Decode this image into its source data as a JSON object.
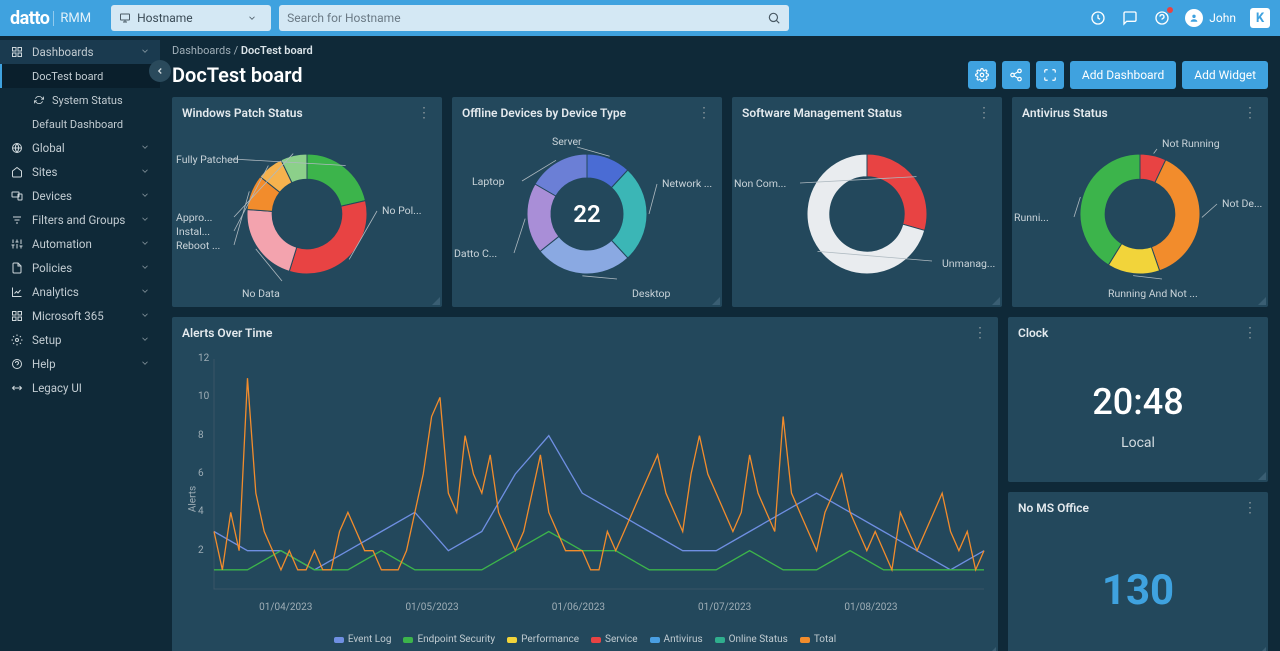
{
  "brand": {
    "name": "datto",
    "sub": "RMM"
  },
  "header": {
    "host_selector": "Hostname",
    "search_placeholder": "Search for Hostname",
    "user_name": "John"
  },
  "sidebar": {
    "dashboards_label": "Dashboards",
    "items_dash": [
      {
        "label": "DocTest board",
        "current": true
      },
      {
        "label": "System Status"
      },
      {
        "label": "Default Dashboard"
      }
    ],
    "items": [
      {
        "label": "Global",
        "icon": "globe"
      },
      {
        "label": "Sites",
        "icon": "home"
      },
      {
        "label": "Devices",
        "icon": "devices"
      },
      {
        "label": "Filters and Groups",
        "icon": "filter"
      },
      {
        "label": "Automation",
        "icon": "sliders"
      },
      {
        "label": "Policies",
        "icon": "doc"
      },
      {
        "label": "Analytics",
        "icon": "analytics"
      },
      {
        "label": "Microsoft 365",
        "icon": "grid"
      },
      {
        "label": "Setup",
        "icon": "gear"
      },
      {
        "label": "Help",
        "icon": "help"
      },
      {
        "label": "Legacy UI",
        "icon": "swap"
      }
    ]
  },
  "page": {
    "breadcrumb_root": "Dashboards",
    "breadcrumb_leaf": "DocTest board",
    "title": "DocTest board",
    "btn_add_dashboard": "Add Dashboard",
    "btn_add_widget": "Add Widget"
  },
  "cards": {
    "patch_status": {
      "title": "Windows Patch Status",
      "type": "donut",
      "segments": [
        {
          "idx": 0,
          "label": "Fully Patched",
          "value": 18,
          "color": "#3cb44b"
        },
        {
          "idx": 1,
          "label": "No Pol...",
          "value": 28,
          "color": "#e84343"
        },
        {
          "idx": 2,
          "label": "No Data",
          "value": 18,
          "color": "#f3a3ae"
        },
        {
          "idx": 3,
          "label": "Reboot ...",
          "value": 8,
          "color": "#f28c2c"
        },
        {
          "idx": 4,
          "label": "Instal...",
          "value": 6,
          "color": "#f6b24e"
        },
        {
          "idx": 5,
          "label": "Appro...",
          "value": 6,
          "color": "#8cd08a"
        }
      ],
      "inner_ratio": 0.58
    },
    "offline_devices": {
      "title": "Offline Devices by Device Type",
      "type": "donut",
      "center_text": "22",
      "segments": [
        {
          "idx": 0,
          "label": "Server",
          "value": 10,
          "color": "#4a6cd4"
        },
        {
          "idx": 1,
          "label": "Network ...",
          "value": 22,
          "color": "#3bb6b6"
        },
        {
          "idx": 2,
          "label": "Desktop",
          "value": 22,
          "color": "#8aa9e2"
        },
        {
          "idx": 3,
          "label": "Datto C...",
          "value": 16,
          "color": "#a98ed7"
        },
        {
          "idx": 4,
          "label": "Laptop",
          "value": 14,
          "color": "#6b7fd6"
        }
      ],
      "inner_ratio": 0.6
    },
    "software_mgmt": {
      "title": "Software Management Status",
      "type": "donut",
      "segments": [
        {
          "idx": 0,
          "label": "Non Com...",
          "value": 25,
          "color": "#e84343"
        },
        {
          "idx": 1,
          "label": "Unmanag...",
          "value": 60,
          "color": "#e9ecef"
        }
      ],
      "inner_ratio": 0.62
    },
    "antivirus": {
      "title": "Antivirus Status",
      "type": "donut",
      "segments": [
        {
          "idx": 0,
          "label": "Not Running",
          "value": 6,
          "color": "#e84343"
        },
        {
          "idx": 1,
          "label": "Not De...",
          "value": 32,
          "color": "#f28c2c"
        },
        {
          "idx": 2,
          "label": "Running And Not ...",
          "value": 12,
          "color": "#f2d43a"
        },
        {
          "idx": 3,
          "label": "Runni...",
          "value": 35,
          "color": "#3cb44b"
        }
      ],
      "inner_ratio": 0.58
    },
    "alerts_over_time": {
      "title": "Alerts Over Time",
      "type": "line",
      "y_label": "Alerts",
      "ylim": [
        0,
        12
      ],
      "ytick_step": 2,
      "x_labels": [
        "01/04/2023",
        "01/05/2023",
        "01/06/2023",
        "01/07/2023",
        "01/08/2023"
      ],
      "series": [
        {
          "name": "Event Log",
          "color": "#6f8fe2",
          "points": [
            3,
            2,
            2,
            1,
            2,
            3,
            4,
            2,
            3,
            6,
            8,
            5,
            4,
            3,
            2,
            2,
            3,
            4,
            5,
            4,
            3,
            2,
            1,
            2
          ]
        },
        {
          "name": "Endpoint Security",
          "color": "#3cb44b",
          "points": [
            1,
            1,
            2,
            1,
            1,
            2,
            1,
            1,
            1,
            2,
            3,
            2,
            2,
            1,
            1,
            1,
            2,
            1,
            1,
            2,
            1,
            1,
            1,
            1
          ]
        },
        {
          "name": "Performance",
          "color": "#f2d43a",
          "points": [
            0
          ]
        },
        {
          "name": "Service",
          "color": "#e84343",
          "points": [
            0
          ]
        },
        {
          "name": "Antivirus",
          "color": "#4a9fe2",
          "points": [
            0
          ]
        },
        {
          "name": "Online Status",
          "color": "#2fae8d",
          "points": [
            0
          ]
        },
        {
          "name": "Total",
          "color": "#f28c2c",
          "points": [
            3,
            1,
            4,
            2,
            11,
            5,
            3,
            2,
            1,
            2,
            1,
            1,
            2,
            1,
            1,
            3,
            4,
            3,
            2,
            2,
            1,
            1,
            1,
            2,
            4,
            6,
            9,
            10,
            5,
            4,
            8,
            6,
            5,
            7,
            4,
            3,
            2,
            3,
            5,
            7,
            4,
            3,
            2,
            2,
            2,
            1,
            1,
            3,
            2,
            3,
            4,
            5,
            6,
            7,
            5,
            4,
            3,
            6,
            8,
            6,
            5,
            4,
            3,
            4,
            7,
            5,
            4,
            3,
            9,
            5,
            4,
            3,
            2,
            4,
            5,
            6,
            4,
            3,
            2,
            3,
            2,
            1,
            4,
            3,
            2,
            3,
            4,
            5,
            3,
            2,
            3,
            1,
            2
          ]
        }
      ],
      "colors": {
        "axis": "#3a5566",
        "text": "#9faeb6"
      }
    },
    "clock": {
      "title": "Clock",
      "time": "20:48",
      "label": "Local"
    },
    "no_ms_office": {
      "title": "No MS Office",
      "value": "130",
      "value_color": "#3fa2df"
    }
  }
}
